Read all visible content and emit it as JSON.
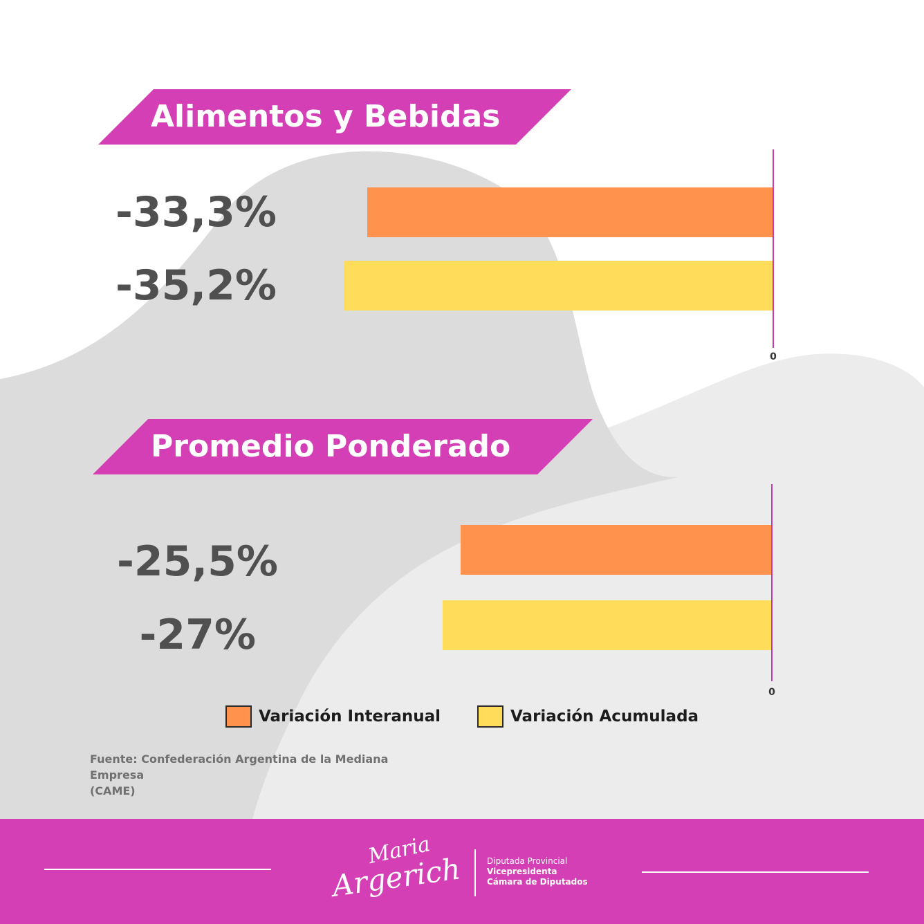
{
  "colors": {
    "magenta": "#d43fb6",
    "interanual": "#ff924d",
    "acumulada": "#ffdd5a",
    "value_text": "#505050"
  },
  "chart_data": [
    {
      "type": "bar",
      "orientation": "horizontal",
      "title": "Alimentos y Bebidas",
      "series": [
        {
          "name": "Variación Interanual",
          "values": [
            -33.3
          ]
        },
        {
          "name": "Variación Acumulada",
          "values": [
            -35.2
          ]
        }
      ],
      "value_labels": [
        "-33,3%",
        "-35,2%"
      ],
      "axis_zero_label": "0",
      "xlim": [
        -38,
        0
      ]
    },
    {
      "type": "bar",
      "orientation": "horizontal",
      "title": "Promedio Ponderado",
      "series": [
        {
          "name": "Variación Interanual",
          "values": [
            -25.5
          ]
        },
        {
          "name": "Variación Acumulada",
          "values": [
            -27
          ]
        }
      ],
      "value_labels": [
        "-25,5%",
        "-27%"
      ],
      "axis_zero_label": "0",
      "xlim": [
        -38,
        0
      ]
    }
  ],
  "legend": {
    "interanual": "Variación Interanual",
    "acumulada": "Variación Acumulada"
  },
  "source": {
    "line1": "Fuente:  Confederación Argentina de la Mediana Empresa",
    "line2": "(CAME)"
  },
  "footer": {
    "signature_top": "Maria",
    "signature_bottom": "Argerich",
    "role1": "Diputada Provincial",
    "role2": "Vicepresidenta",
    "role3": "Cámara de Diputados"
  }
}
